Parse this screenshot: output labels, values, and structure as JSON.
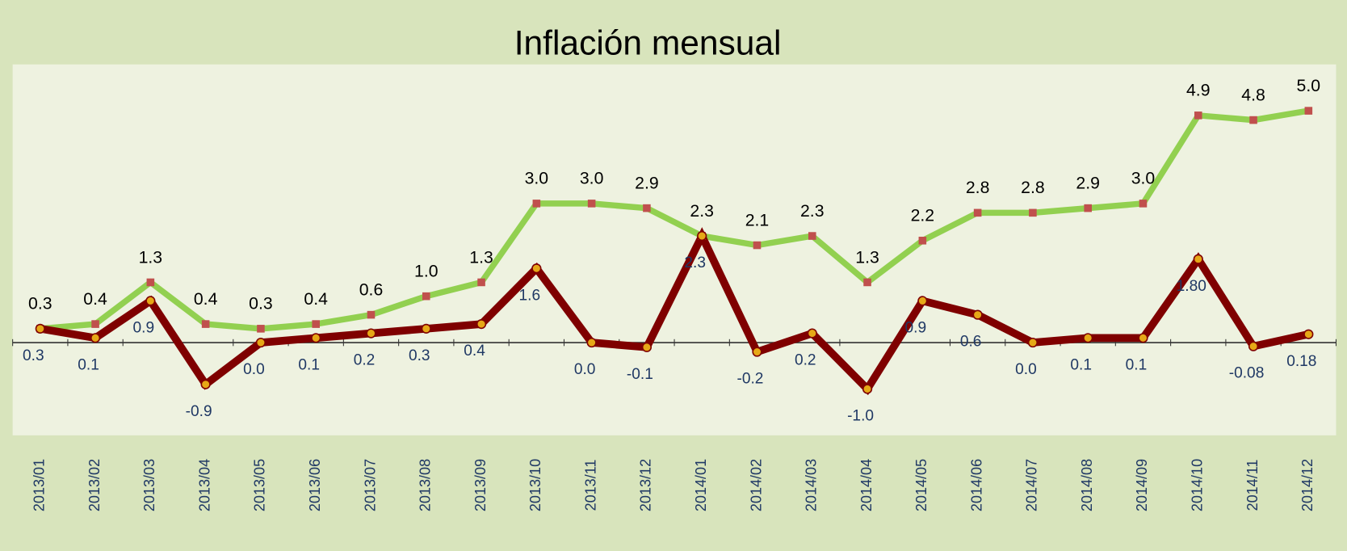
{
  "chart_data": {
    "type": "line",
    "title": "Inflación mensual",
    "categories": [
      "2013/01",
      "2013/02",
      "2013/03",
      "2013/04",
      "2013/05",
      "2013/06",
      "2013/07",
      "2013/08",
      "2013/09",
      "2013/10",
      "2013/11",
      "2013/12",
      "2014/01",
      "2014/02",
      "2014/03",
      "2014/04",
      "2014/05",
      "2014/06",
      "2014/07",
      "2014/08",
      "2014/09",
      "2014/10",
      "2014/11",
      "2014/12"
    ],
    "series": [
      {
        "color": "#92d050",
        "marker_color": "#c0504d",
        "values": [
          0.3,
          0.4,
          1.3,
          0.4,
          0.3,
          0.4,
          0.6,
          1.0,
          1.3,
          3.0,
          3.0,
          2.9,
          2.3,
          2.1,
          2.3,
          1.3,
          2.2,
          2.8,
          2.8,
          2.9,
          3.0,
          4.9,
          4.8,
          5.0
        ],
        "value_labels": [
          "0.3",
          "0.4",
          "1.3",
          "0.4",
          "0.3",
          "0.4",
          "0.6",
          "1.0",
          "1.3",
          "3.0",
          "3.0",
          "2.9",
          "2.3",
          "2.1",
          "2.3",
          "1.3",
          "2.2",
          "2.8",
          "2.8",
          "2.9",
          "3.0",
          "4.9",
          "4.8",
          "5.0"
        ]
      },
      {
        "color": "#7f0000",
        "marker_color": "#e6a817",
        "values": [
          0.3,
          0.1,
          0.9,
          -0.9,
          0.0,
          0.1,
          0.2,
          0.3,
          0.4,
          1.6,
          0.0,
          -0.1,
          2.3,
          -0.2,
          0.2,
          -1.0,
          0.9,
          0.6,
          0.0,
          0.1,
          0.1,
          1.8,
          -0.08,
          0.18
        ],
        "value_labels": [
          "0.3",
          "0.1",
          "0.9",
          "-0.9",
          "0.0",
          "0.1",
          "0.2",
          "0.3",
          "0.4",
          "1.6",
          "0.0",
          "-0.1",
          "2.3",
          "-0.2",
          "0.2",
          "-1.0",
          "0.9",
          "0.6",
          "0.0",
          "0.1",
          "0.1",
          "1.80",
          "-0.08",
          "0.18"
        ]
      }
    ],
    "ylim": [
      -2,
      6
    ]
  }
}
